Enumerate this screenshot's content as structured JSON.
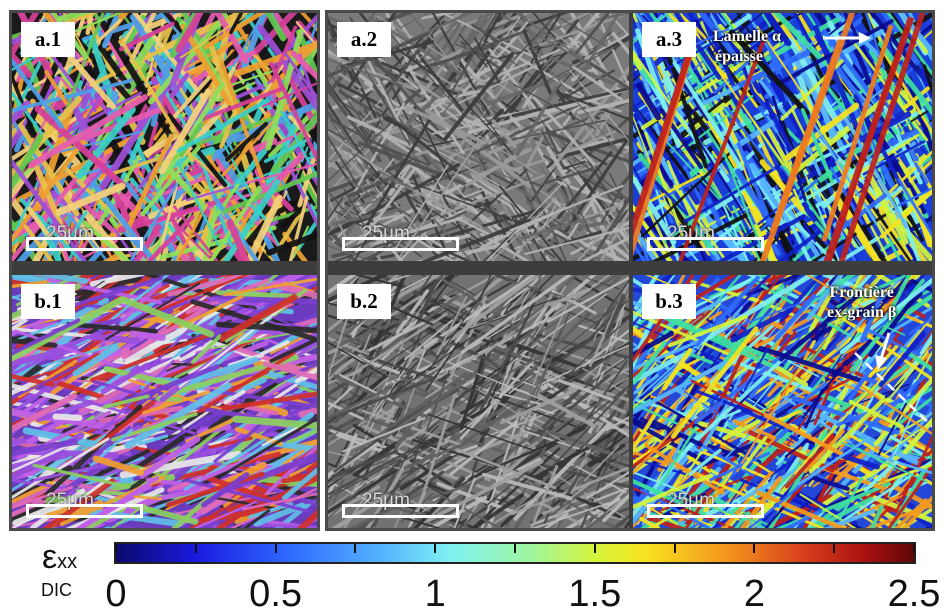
{
  "panels": {
    "a1": {
      "label": "a.1",
      "scale": "25µm"
    },
    "a2": {
      "label": "a.2",
      "scale": "25µm"
    },
    "a3": {
      "label": "a.3",
      "scale": "25µm"
    },
    "b1": {
      "label": "b.1",
      "scale": "25µm"
    },
    "b2": {
      "label": "b.2",
      "scale": "25µm"
    },
    "b3": {
      "label": "b.3",
      "scale": "25µm"
    }
  },
  "annotations": {
    "a3_line1": "Lamelle α",
    "a3_line2": "épaisse",
    "b3_line1": "Frontière",
    "b3_line2": "ex-grain β"
  },
  "colorbar": {
    "symbol": "ε",
    "subscript": "xx",
    "method": "DIC",
    "ticks": [
      "0",
      "0.5",
      "1",
      "1.5",
      "2",
      "2.5"
    ],
    "range": [
      0,
      2.5
    ]
  }
}
